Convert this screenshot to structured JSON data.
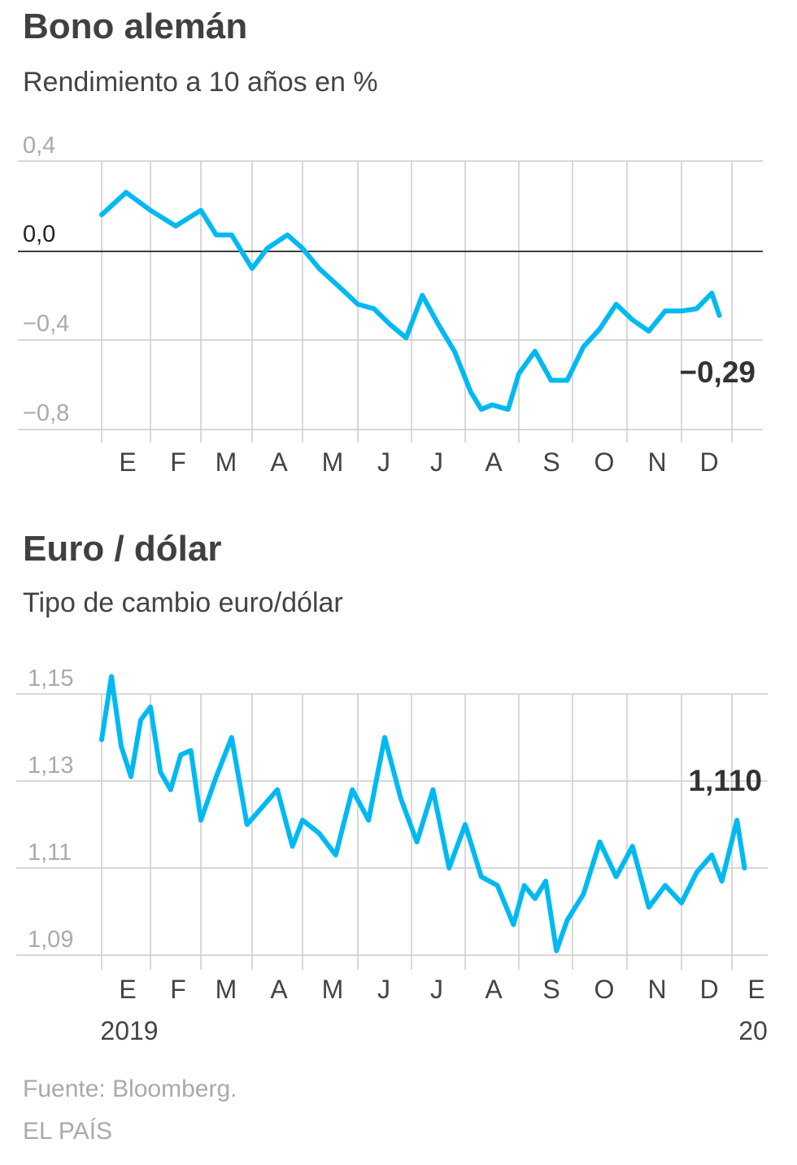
{
  "charts": [
    {
      "title": "Bono alemán",
      "subtitle": "Rendimiento a 10 años en %",
      "end_label": "−0,29",
      "y_tick_labels": [
        "0,4",
        "0,0",
        "−0,4",
        "−0,8"
      ],
      "month_labels": [
        "E",
        "F",
        "M",
        "A",
        "M",
        "J",
        "J",
        "A",
        "S",
        "O",
        "N",
        "D"
      ]
    },
    {
      "title": "Euro / dólar",
      "subtitle": "Tipo de cambio euro/dólar",
      "end_label": "1,110",
      "y_tick_labels": [
        "1,15",
        "1,13",
        "1,11",
        "1,09"
      ],
      "month_labels": [
        "E",
        "F",
        "M",
        "A",
        "M",
        "J",
        "J",
        "A",
        "S",
        "O",
        "N",
        "D",
        "E"
      ],
      "year_labels": [
        "2019",
        "20"
      ]
    }
  ],
  "footer": {
    "source": "Fuente: Bloomberg.",
    "publisher": "EL PAÍS"
  },
  "colors": {
    "line": "#00b9f2",
    "grid": "#cccccc",
    "zero_line": "#222222"
  },
  "chart_data": [
    {
      "type": "line",
      "title": "Bono alemán",
      "subtitle": "Rendimiento a 10 años en %",
      "series": [
        {
          "name": "Rendimiento a 10 años",
          "x_month": [
            0,
            0.5,
            1,
            1.5,
            2,
            2.3,
            2.6,
            3,
            3.3,
            3.7,
            4,
            4.3,
            4.7,
            5,
            5.3,
            5.6,
            5.9,
            6.2,
            6.5,
            6.8,
            7.1,
            7.3,
            7.5,
            7.8,
            8.0,
            8.3,
            8.6,
            8.9,
            9.2,
            9.5,
            9.8,
            10.1,
            10.4,
            10.7,
            11.0,
            11.3,
            11.6,
            11.75
          ],
          "y": [
            0.16,
            0.26,
            0.18,
            0.11,
            0.18,
            0.07,
            0.07,
            -0.08,
            0.01,
            0.07,
            0.01,
            -0.08,
            -0.17,
            -0.24,
            -0.26,
            -0.33,
            -0.39,
            -0.2,
            -0.33,
            -0.45,
            -0.63,
            -0.71,
            -0.69,
            -0.71,
            -0.55,
            -0.45,
            -0.58,
            -0.58,
            -0.43,
            -0.35,
            -0.24,
            -0.31,
            -0.36,
            -0.27,
            -0.27,
            -0.26,
            -0.19,
            -0.29
          ]
        }
      ],
      "y_ticks": [
        0.4,
        0.0,
        -0.4,
        -0.8
      ],
      "y_tick_labels": [
        "0,4",
        "0,0",
        "−0,4",
        "−0,8"
      ],
      "ylim": [
        -0.85,
        0.45
      ],
      "x_categories": [
        "E",
        "F",
        "M",
        "A",
        "M",
        "J",
        "J",
        "A",
        "S",
        "O",
        "N",
        "D"
      ],
      "end_value": -0.29
    },
    {
      "type": "line",
      "title": "Euro / dólar",
      "subtitle": "Tipo de cambio euro/dólar",
      "series": [
        {
          "name": "Euro/dólar",
          "x_month": [
            0,
            0.2,
            0.4,
            0.6,
            0.8,
            1.0,
            1.2,
            1.4,
            1.6,
            1.8,
            2.0,
            2.3,
            2.6,
            2.9,
            3.2,
            3.5,
            3.8,
            4.0,
            4.3,
            4.6,
            4.9,
            5.2,
            5.5,
            5.8,
            6.1,
            6.4,
            6.7,
            7.0,
            7.3,
            7.6,
            7.9,
            8.1,
            8.3,
            8.5,
            8.7,
            8.9,
            9.2,
            9.5,
            9.8,
            10.1,
            10.4,
            10.7,
            11.0,
            11.3,
            11.6,
            11.8,
            12.1,
            12.25
          ],
          "y": [
            1.1395,
            1.154,
            1.138,
            1.131,
            1.144,
            1.147,
            1.132,
            1.128,
            1.136,
            1.137,
            1.121,
            1.131,
            1.14,
            1.12,
            1.124,
            1.128,
            1.115,
            1.121,
            1.118,
            1.113,
            1.128,
            1.121,
            1.14,
            1.126,
            1.116,
            1.128,
            1.11,
            1.12,
            1.108,
            1.106,
            1.097,
            1.106,
            1.103,
            1.107,
            1.091,
            1.098,
            1.104,
            1.116,
            1.108,
            1.115,
            1.101,
            1.106,
            1.102,
            1.109,
            1.113,
            1.107,
            1.121,
            1.11
          ]
        }
      ],
      "y_ticks": [
        1.15,
        1.13,
        1.11,
        1.09
      ],
      "y_tick_labels": [
        "1,15",
        "1,13",
        "1,11",
        "1,09"
      ],
      "ylim": [
        1.089,
        1.155
      ],
      "x_categories": [
        "E",
        "F",
        "M",
        "A",
        "M",
        "J",
        "J",
        "A",
        "S",
        "O",
        "N",
        "D",
        "E"
      ],
      "x_years": [
        "2019",
        "20"
      ],
      "end_value": 1.11
    }
  ]
}
